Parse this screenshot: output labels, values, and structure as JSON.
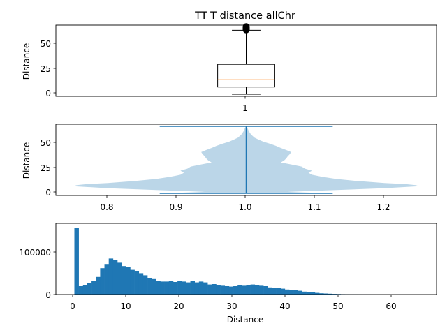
{
  "chart_data": [
    {
      "type": "box",
      "title": "TT T distance allChr",
      "xlabel": "",
      "ylabel": "Distance",
      "x_ticks": [
        "1"
      ],
      "y_ticks": [
        0,
        25,
        50
      ],
      "ylim": [
        -2,
        67
      ],
      "stats": {
        "min": 0,
        "q1": 7,
        "median": 14,
        "q3": 29,
        "whisker_high": 62
      },
      "outliers": [
        62.5,
        63,
        63.5,
        64,
        64.5,
        65,
        65.5
      ],
      "colors": {
        "box": "#000000",
        "median": "#ff7f0e"
      }
    },
    {
      "type": "violin",
      "xlabel": "",
      "ylabel": "Distance",
      "xlim": [
        0.725,
        1.275
      ],
      "ylim": [
        -2,
        67
      ],
      "x_ticks": [
        "0.8",
        "0.9",
        "1.0",
        "1.1",
        "1.2"
      ],
      "y_ticks": [
        0,
        25,
        50
      ],
      "min": 0,
      "max": 65,
      "position": 1.0,
      "density_profile": [
        {
          "y": 0,
          "w": 0.22
        },
        {
          "y": 0.5,
          "w": 0.1
        },
        {
          "y": 1.5,
          "w": 0.06
        },
        {
          "y": 3,
          "w": 0.12
        },
        {
          "y": 5,
          "w": 0.2
        },
        {
          "y": 7,
          "w": 0.25
        },
        {
          "y": 8,
          "w": 0.245
        },
        {
          "y": 9,
          "w": 0.23
        },
        {
          "y": 10,
          "w": 0.2
        },
        {
          "y": 11,
          "w": 0.18
        },
        {
          "y": 12,
          "w": 0.16
        },
        {
          "y": 14,
          "w": 0.13
        },
        {
          "y": 16,
          "w": 0.11
        },
        {
          "y": 18,
          "w": 0.095
        },
        {
          "y": 20,
          "w": 0.09
        },
        {
          "y": 22,
          "w": 0.095
        },
        {
          "y": 24,
          "w": 0.085
        },
        {
          "y": 26,
          "w": 0.08
        },
        {
          "y": 28,
          "w": 0.065
        },
        {
          "y": 30,
          "w": 0.05
        },
        {
          "y": 32,
          "w": 0.055
        },
        {
          "y": 34,
          "w": 0.058
        },
        {
          "y": 36,
          "w": 0.06
        },
        {
          "y": 38,
          "w": 0.063
        },
        {
          "y": 40,
          "w": 0.065
        },
        {
          "y": 42,
          "w": 0.058
        },
        {
          "y": 44,
          "w": 0.05
        },
        {
          "y": 46,
          "w": 0.043
        },
        {
          "y": 48,
          "w": 0.035
        },
        {
          "y": 50,
          "w": 0.025
        },
        {
          "y": 52,
          "w": 0.018
        },
        {
          "y": 54,
          "w": 0.012
        },
        {
          "y": 57,
          "w": 0.007
        },
        {
          "y": 60,
          "w": 0.004
        },
        {
          "y": 63,
          "w": 0.002
        },
        {
          "y": 65,
          "w": 0.0
        }
      ],
      "colors": {
        "fill": "#1f77b4",
        "lines": "#1f77b4"
      }
    },
    {
      "type": "histogram",
      "xlabel": "Distance",
      "ylabel": "",
      "xlim": [
        -3.5,
        68.5
      ],
      "ylim": [
        0,
        170000
      ],
      "x_ticks": [
        0,
        10,
        20,
        30,
        40,
        50,
        60
      ],
      "y_ticks": [
        {
          "value": 0,
          "label": "0"
        },
        {
          "value": 100000,
          "label": "100000"
        }
      ],
      "bin_start": 0,
      "bin_width": 0.8125,
      "counts": [
        160000,
        20000,
        23000,
        28000,
        32000,
        42000,
        63000,
        73000,
        86000,
        82000,
        76000,
        68000,
        66000,
        59000,
        55000,
        51000,
        46000,
        40000,
        37000,
        33000,
        31000,
        31000,
        33000,
        30000,
        32000,
        31000,
        29000,
        32000,
        29000,
        31000,
        29000,
        24000,
        25000,
        23000,
        21000,
        20000,
        19000,
        20000,
        22000,
        21000,
        22000,
        24000,
        23000,
        21000,
        20000,
        17000,
        16000,
        15000,
        14000,
        12000,
        11000,
        10000,
        9000,
        7000,
        6000,
        5000,
        4000,
        3000,
        2500,
        2000,
        1500,
        1200,
        900,
        700,
        500,
        400,
        300,
        200,
        150,
        100
      ],
      "colors": {
        "bars": "#1f77b4"
      }
    }
  ]
}
